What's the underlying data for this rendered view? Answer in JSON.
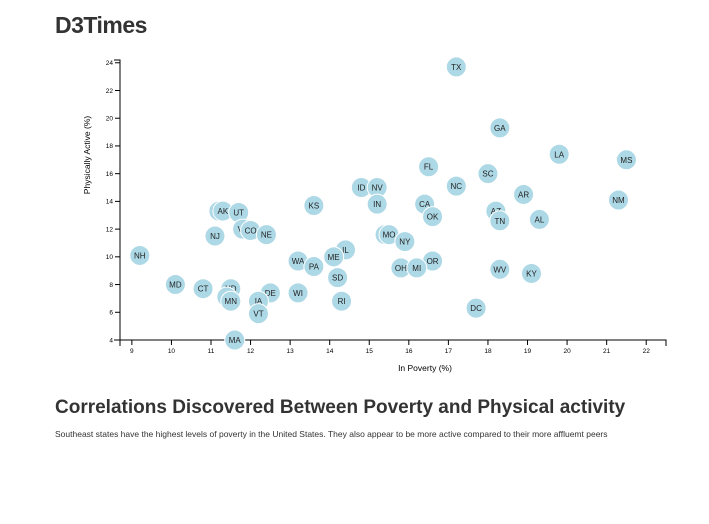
{
  "page": {
    "title": "D3Times"
  },
  "article": {
    "heading": "Correlations Discovered Between Poverty and Physical activity",
    "body": "Southeast states have the highest levels of poverty in the United States. They also appear to be more active compared to their more affluemt peers"
  },
  "chart_data": {
    "type": "scatter",
    "title": "",
    "xlabel": "In Poverty (%)",
    "ylabel": "Physically Active (%)",
    "xlim": [
      8.7,
      22.5
    ],
    "ylim": [
      4,
      24.2
    ],
    "xticks": [
      9,
      10,
      11,
      12,
      13,
      14,
      15,
      16,
      17,
      18,
      19,
      20,
      21,
      22
    ],
    "yticks": [
      4,
      6,
      8,
      10,
      12,
      14,
      16,
      18,
      20,
      22,
      24
    ],
    "grid": false,
    "point_color": "#add8e6",
    "points": [
      {
        "label": "TX",
        "x": 17.2,
        "y": 23.7
      },
      {
        "label": "GA",
        "x": 18.3,
        "y": 19.3
      },
      {
        "label": "LA",
        "x": 19.8,
        "y": 17.4
      },
      {
        "label": "MS",
        "x": 21.5,
        "y": 17.0
      },
      {
        "label": "FL",
        "x": 16.5,
        "y": 16.5
      },
      {
        "label": "SC",
        "x": 18.0,
        "y": 16.0
      },
      {
        "label": "NC",
        "x": 17.2,
        "y": 15.1
      },
      {
        "label": "ID",
        "x": 14.8,
        "y": 15.0
      },
      {
        "label": "NV",
        "x": 15.2,
        "y": 15.0
      },
      {
        "label": "AR",
        "x": 18.9,
        "y": 14.5
      },
      {
        "label": "NM",
        "x": 21.3,
        "y": 14.1
      },
      {
        "label": "IN",
        "x": 15.2,
        "y": 13.8
      },
      {
        "label": "CA",
        "x": 16.4,
        "y": 13.8
      },
      {
        "label": "KS",
        "x": 13.6,
        "y": 13.7
      },
      {
        "label": "WY",
        "x": 11.2,
        "y": 13.3
      },
      {
        "label": "AK",
        "x": 11.3,
        "y": 13.3
      },
      {
        "label": "UT",
        "x": 11.7,
        "y": 13.2
      },
      {
        "label": "AZ",
        "x": 18.2,
        "y": 13.3
      },
      {
        "label": "OK",
        "x": 16.6,
        "y": 12.9
      },
      {
        "label": "AL",
        "x": 19.3,
        "y": 12.7
      },
      {
        "label": "TN",
        "x": 18.3,
        "y": 12.6
      },
      {
        "label": "VA",
        "x": 11.8,
        "y": 12.0
      },
      {
        "label": "CO",
        "x": 12.0,
        "y": 11.9
      },
      {
        "label": "NE",
        "x": 12.4,
        "y": 11.6
      },
      {
        "label": "NJ",
        "x": 11.1,
        "y": 11.5
      },
      {
        "label": "MT",
        "x": 15.4,
        "y": 11.6
      },
      {
        "label": "MO",
        "x": 15.5,
        "y": 11.6
      },
      {
        "label": "NY",
        "x": 15.9,
        "y": 11.1
      },
      {
        "label": "IL",
        "x": 14.4,
        "y": 10.5
      },
      {
        "label": "NH",
        "x": 9.2,
        "y": 10.1
      },
      {
        "label": "ME",
        "x": 14.1,
        "y": 10.0
      },
      {
        "label": "WA",
        "x": 13.2,
        "y": 9.7
      },
      {
        "label": "OR",
        "x": 16.6,
        "y": 9.7
      },
      {
        "label": "PA",
        "x": 13.6,
        "y": 9.3
      },
      {
        "label": "OH",
        "x": 15.8,
        "y": 9.2
      },
      {
        "label": "MI",
        "x": 16.2,
        "y": 9.2
      },
      {
        "label": "WV",
        "x": 18.3,
        "y": 9.1
      },
      {
        "label": "KY",
        "x": 19.1,
        "y": 8.8
      },
      {
        "label": "SD",
        "x": 14.2,
        "y": 8.5
      },
      {
        "label": "MD",
        "x": 10.1,
        "y": 8.0
      },
      {
        "label": "CT",
        "x": 10.8,
        "y": 7.7
      },
      {
        "label": "ND",
        "x": 11.5,
        "y": 7.7
      },
      {
        "label": "DE",
        "x": 12.5,
        "y": 7.4
      },
      {
        "label": "WI",
        "x": 13.2,
        "y": 7.4
      },
      {
        "label": "HI",
        "x": 11.4,
        "y": 7.1
      },
      {
        "label": "MN",
        "x": 11.5,
        "y": 6.8
      },
      {
        "label": "IA",
        "x": 12.2,
        "y": 6.8
      },
      {
        "label": "RI",
        "x": 14.3,
        "y": 6.8
      },
      {
        "label": "DC",
        "x": 17.7,
        "y": 6.3
      },
      {
        "label": "VT",
        "x": 12.2,
        "y": 5.9
      },
      {
        "label": "MA",
        "x": 11.6,
        "y": 4.0
      }
    ]
  }
}
